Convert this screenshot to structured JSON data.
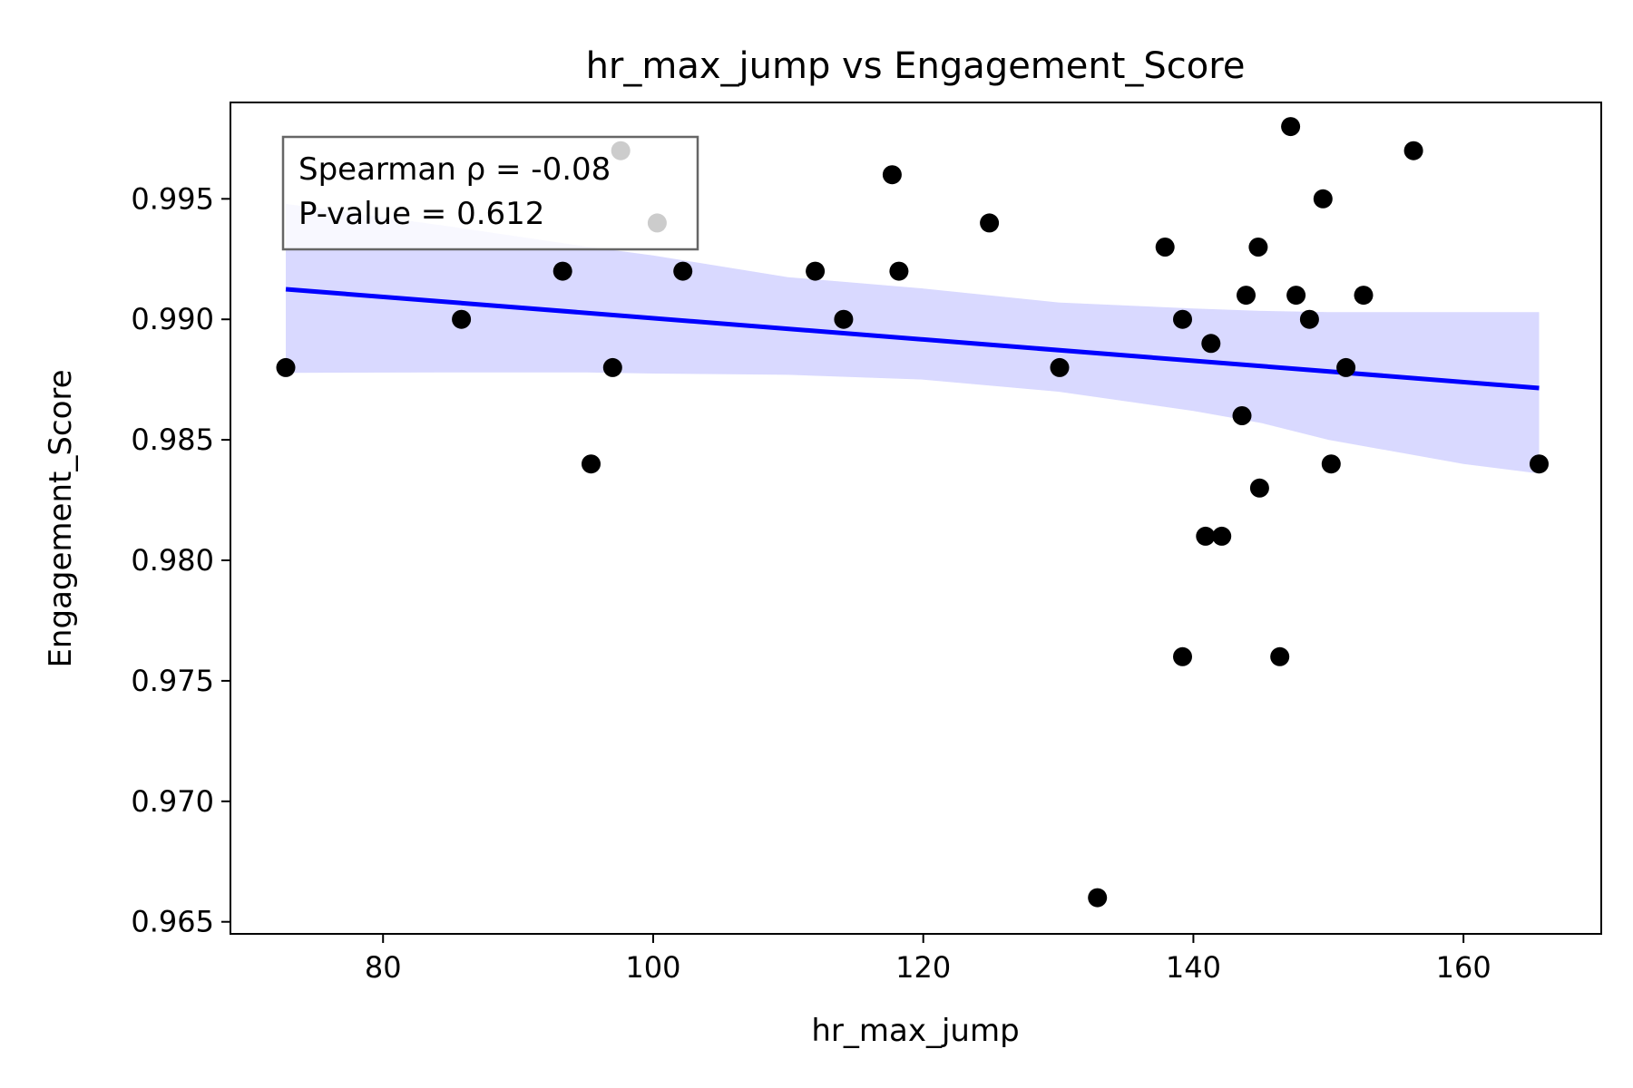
{
  "chart_data": {
    "type": "scatter",
    "title": "hr_max_jump vs Engagement_Score",
    "xlabel": "hr_max_jump",
    "ylabel": "Engagement_Score",
    "xlim": [
      68.7,
      170.2
    ],
    "ylim": [
      0.9645,
      0.999
    ],
    "x_ticks": [
      80,
      100,
      120,
      140,
      160
    ],
    "x_tick_labels": [
      "80",
      "100",
      "120",
      "140",
      "160"
    ],
    "y_ticks": [
      0.965,
      0.97,
      0.975,
      0.98,
      0.985,
      0.99,
      0.995
    ],
    "y_tick_labels": [
      "0.965",
      "0.970",
      "0.975",
      "0.980",
      "0.985",
      "0.990",
      "0.995"
    ],
    "grid": false,
    "annotation": {
      "line1": "Spearman ρ = -0.08",
      "line2": "P-value = 0.612",
      "placement": "top-left"
    },
    "points": [
      {
        "x": 72.8,
        "y": 0.988
      },
      {
        "x": 85.8,
        "y": 0.99
      },
      {
        "x": 93.3,
        "y": 0.992
      },
      {
        "x": 95.4,
        "y": 0.984
      },
      {
        "x": 97.0,
        "y": 0.988
      },
      {
        "x": 97.6,
        "y": 0.997
      },
      {
        "x": 100.3,
        "y": 0.994
      },
      {
        "x": 102.2,
        "y": 0.992
      },
      {
        "x": 112.0,
        "y": 0.992
      },
      {
        "x": 114.1,
        "y": 0.99
      },
      {
        "x": 117.7,
        "y": 0.996
      },
      {
        "x": 118.2,
        "y": 0.992
      },
      {
        "x": 124.9,
        "y": 0.994
      },
      {
        "x": 130.1,
        "y": 0.988
      },
      {
        "x": 132.9,
        "y": 0.966
      },
      {
        "x": 137.9,
        "y": 0.993
      },
      {
        "x": 139.2,
        "y": 0.99
      },
      {
        "x": 139.2,
        "y": 0.976
      },
      {
        "x": 140.9,
        "y": 0.981
      },
      {
        "x": 141.3,
        "y": 0.989
      },
      {
        "x": 142.1,
        "y": 0.981
      },
      {
        "x": 143.6,
        "y": 0.986
      },
      {
        "x": 143.9,
        "y": 0.991
      },
      {
        "x": 144.8,
        "y": 0.993
      },
      {
        "x": 144.9,
        "y": 0.983
      },
      {
        "x": 146.4,
        "y": 0.976
      },
      {
        "x": 147.2,
        "y": 0.998
      },
      {
        "x": 147.6,
        "y": 0.991
      },
      {
        "x": 148.6,
        "y": 0.99
      },
      {
        "x": 149.6,
        "y": 0.995
      },
      {
        "x": 150.2,
        "y": 0.984
      },
      {
        "x": 151.3,
        "y": 0.988
      },
      {
        "x": 152.6,
        "y": 0.991
      },
      {
        "x": 156.3,
        "y": 0.997
      },
      {
        "x": 165.6,
        "y": 0.984
      }
    ],
    "regression": {
      "x": [
        72.8,
        165.6
      ],
      "y": [
        0.99125,
        0.98715
      ]
    },
    "confidence_band": {
      "x": [
        72.8,
        85,
        95,
        100,
        110,
        120,
        130,
        140,
        145,
        150,
        155,
        160,
        165.6
      ],
      "upper": [
        0.99479,
        0.99385,
        0.99302,
        0.99265,
        0.99175,
        0.99128,
        0.9907,
        0.99045,
        0.99035,
        0.9903,
        0.9903,
        0.9903,
        0.9903
      ],
      "lower": [
        0.98778,
        0.9878,
        0.9878,
        0.98775,
        0.9877,
        0.9875,
        0.987,
        0.9862,
        0.9857,
        0.985,
        0.9845,
        0.984,
        0.9836
      ]
    },
    "colors": {
      "points": "#000000",
      "points_behind_legend": "#999999",
      "regression_line": "#0000ff",
      "confidence_band": "#d9d9ff",
      "legend_border": "#666666"
    }
  }
}
